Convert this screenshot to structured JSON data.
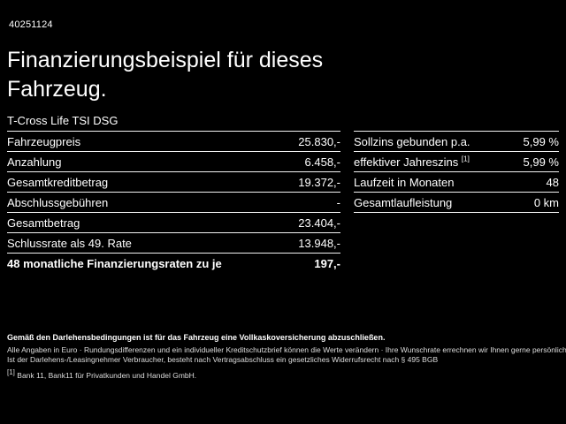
{
  "header": {
    "id": "40251124",
    "title_line1": "Finanzierungsbeispiel für dieses",
    "title_line2": "Fahrzeug.",
    "subtitle": "T-Cross Life TSI DSG"
  },
  "left_table": {
    "rows": [
      {
        "label": "Fahrzeugpreis",
        "value": "25.830,-"
      },
      {
        "label": "Anzahlung",
        "value": "6.458,-"
      },
      {
        "label": "Gesamtkreditbetrag",
        "value": "19.372,-"
      },
      {
        "label": "Abschlussgebühren",
        "value": "-"
      },
      {
        "label": "Gesamtbetrag",
        "value": "23.404,-"
      },
      {
        "label": "Schlussrate als 49. Rate",
        "value": "13.948,-"
      },
      {
        "label": "48 monatliche Finanzierungsraten zu je",
        "value": "197,-"
      }
    ]
  },
  "right_table": {
    "rows": [
      {
        "label": "Sollzins gebunden p.a.",
        "value": "5,99 %"
      },
      {
        "label": "effektiver Jahreszins",
        "sup": "[1]",
        "value": "5,99 %"
      },
      {
        "label": "Laufzeit in Monaten",
        "value": "48"
      },
      {
        "label": "Gesamtlaufleistung",
        "value": "0 km"
      }
    ]
  },
  "footer": {
    "line1": "Gemäß den Darlehensbedingungen ist für das Fahrzeug eine Vollkaskoversicherung abzuschließen.",
    "line2": "Alle Angaben in Euro · Rundungsdifferenzen und ein individueller Kreditschutzbrief können die Werte verändern · Ihre Wunschrate errechnen wir Ihnen gerne persönlich",
    "line3": "Ist der Darlehens-/Leasingnehmer Verbraucher, besteht nach Vertragsabschluss ein gesetzliches Widerrufsrecht nach § 495 BGB",
    "note_ref": "[1]",
    "note": "Bank 11, Bank11 für Privatkunden und Handel GmbH."
  },
  "colors": {
    "background": "#000000",
    "text": "#ffffff"
  }
}
